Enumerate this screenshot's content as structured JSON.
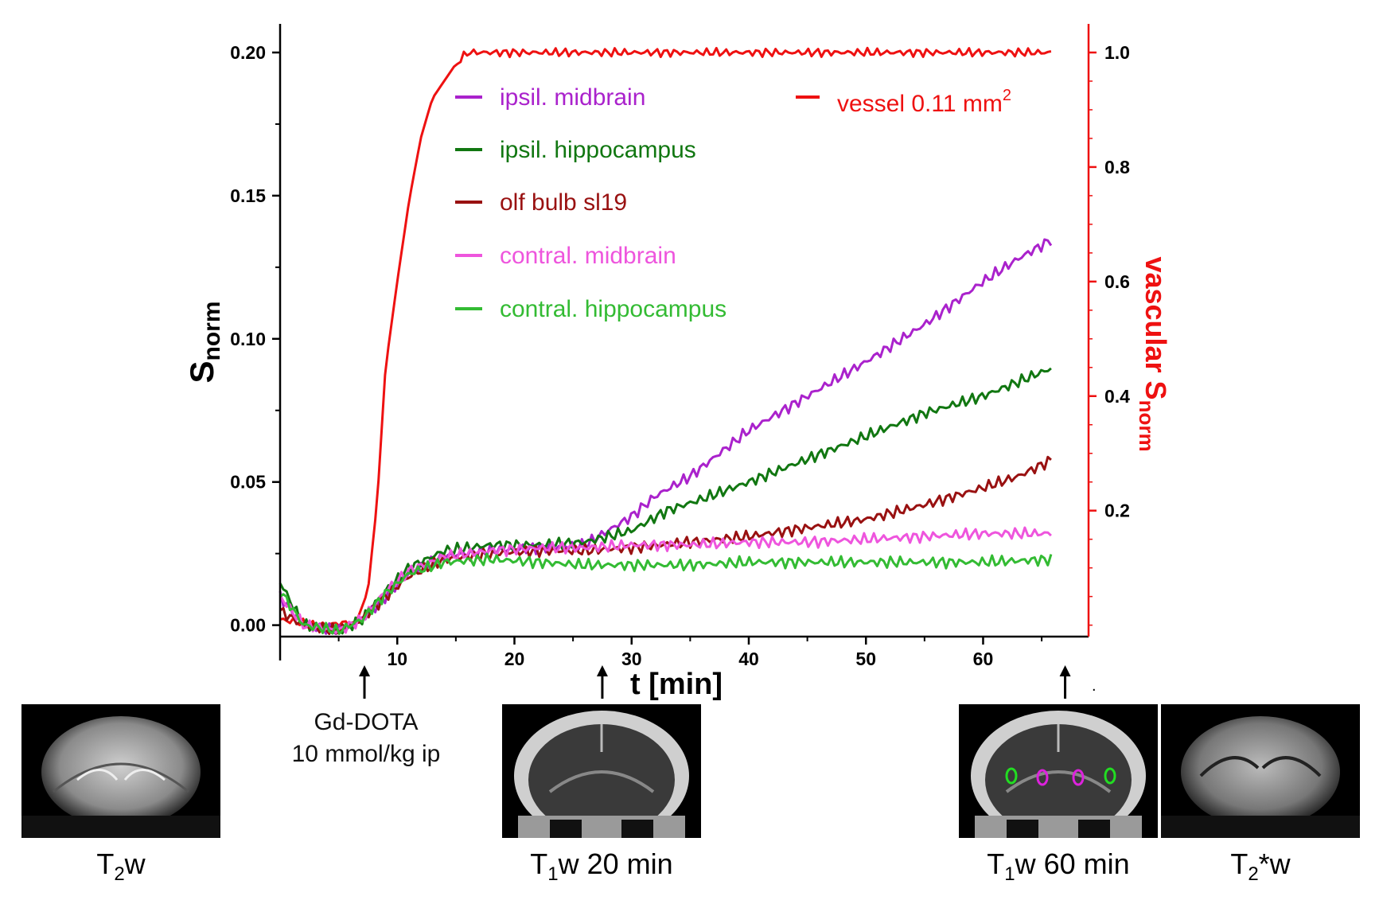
{
  "chart_data": {
    "type": "line",
    "xlabel": "t [min]",
    "ylabel_left": {
      "main": "S",
      "sub": "norm"
    },
    "ylabel_right": {
      "main": "vascular S",
      "sub": "norm"
    },
    "xlim": [
      0,
      69
    ],
    "ylim_left": [
      -0.004,
      0.21
    ],
    "ylim_right": [
      -0.02,
      1.05
    ],
    "x_ticks": [
      10,
      20,
      30,
      40,
      50,
      60
    ],
    "y_ticks_left": [
      "0.00",
      "0.05",
      "0.10",
      "0.15",
      "0.20"
    ],
    "y_ticks_right": [
      "0.2",
      "0.4",
      "0.6",
      "0.8",
      "1.0"
    ],
    "series": [
      {
        "name": "vessel 0.11 mm",
        "sup": "2",
        "axis": "right",
        "color": "#ee1111",
        "points": [
          [
            0,
            0.01
          ],
          [
            3,
            0
          ],
          [
            6.5,
            0.005
          ],
          [
            7.5,
            0.06
          ],
          [
            8.3,
            0.22
          ],
          [
            9,
            0.45
          ],
          [
            10,
            0.6
          ],
          [
            11,
            0.74
          ],
          [
            12,
            0.85
          ],
          [
            13,
            0.92
          ],
          [
            14,
            0.95
          ],
          [
            15,
            0.98
          ],
          [
            16,
            1.0
          ],
          [
            20,
            1.0
          ],
          [
            30,
            1.0
          ],
          [
            40,
            1.0
          ],
          [
            50,
            1.0
          ],
          [
            60,
            1.0
          ],
          [
            66,
            1.0
          ]
        ]
      },
      {
        "name": "ipsil. midbrain",
        "axis": "left",
        "color": "#aa22cc",
        "points": [
          [
            0,
            0.01
          ],
          [
            2,
            0.0
          ],
          [
            5,
            -0.002
          ],
          [
            7,
            0.002
          ],
          [
            9,
            0.01
          ],
          [
            11,
            0.018
          ],
          [
            14,
            0.024
          ],
          [
            18,
            0.026
          ],
          [
            22,
            0.027
          ],
          [
            26,
            0.028
          ],
          [
            30,
            0.038
          ],
          [
            32,
            0.045
          ],
          [
            35,
            0.052
          ],
          [
            40,
            0.068
          ],
          [
            45,
            0.08
          ],
          [
            50,
            0.092
          ],
          [
            55,
            0.105
          ],
          [
            60,
            0.12
          ],
          [
            63,
            0.128
          ],
          [
            66,
            0.135
          ]
        ]
      },
      {
        "name": "ipsil. hippocampus",
        "axis": "left",
        "color": "#117711",
        "points": [
          [
            0,
            0.015
          ],
          [
            2,
            0.0
          ],
          [
            5,
            -0.002
          ],
          [
            7,
            0.002
          ],
          [
            9,
            0.012
          ],
          [
            11,
            0.02
          ],
          [
            14,
            0.026
          ],
          [
            18,
            0.028
          ],
          [
            22,
            0.028
          ],
          [
            26,
            0.029
          ],
          [
            30,
            0.033
          ],
          [
            33,
            0.04
          ],
          [
            36,
            0.044
          ],
          [
            40,
            0.05
          ],
          [
            45,
            0.058
          ],
          [
            50,
            0.066
          ],
          [
            55,
            0.074
          ],
          [
            60,
            0.08
          ],
          [
            63,
            0.085
          ],
          [
            66,
            0.09
          ]
        ]
      },
      {
        "name": "olf bulb sl19",
        "axis": "left",
        "color": "#991111",
        "points": [
          [
            0,
            0.005
          ],
          [
            2,
            0.0
          ],
          [
            5,
            -0.002
          ],
          [
            7,
            0.002
          ],
          [
            9,
            0.01
          ],
          [
            11,
            0.017
          ],
          [
            14,
            0.023
          ],
          [
            18,
            0.025
          ],
          [
            22,
            0.026
          ],
          [
            26,
            0.026
          ],
          [
            30,
            0.027
          ],
          [
            35,
            0.029
          ],
          [
            40,
            0.031
          ],
          [
            45,
            0.034
          ],
          [
            50,
            0.037
          ],
          [
            55,
            0.042
          ],
          [
            60,
            0.048
          ],
          [
            63,
            0.052
          ],
          [
            66,
            0.058
          ]
        ]
      },
      {
        "name": "contral. midbrain",
        "axis": "left",
        "color": "#ee55dd",
        "points": [
          [
            0,
            0.01
          ],
          [
            2,
            0.0
          ],
          [
            5,
            -0.002
          ],
          [
            7,
            0.002
          ],
          [
            9,
            0.012
          ],
          [
            11,
            0.019
          ],
          [
            14,
            0.024
          ],
          [
            18,
            0.026
          ],
          [
            22,
            0.027
          ],
          [
            26,
            0.027
          ],
          [
            30,
            0.028
          ],
          [
            35,
            0.028
          ],
          [
            40,
            0.029
          ],
          [
            45,
            0.029
          ],
          [
            50,
            0.03
          ],
          [
            55,
            0.031
          ],
          [
            60,
            0.032
          ],
          [
            66,
            0.032
          ]
        ]
      },
      {
        "name": "contral. hippocampus",
        "axis": "left",
        "color": "#33bb33",
        "points": [
          [
            0,
            0.012
          ],
          [
            2,
            0.0
          ],
          [
            5,
            -0.002
          ],
          [
            7,
            0.002
          ],
          [
            9,
            0.011
          ],
          [
            11,
            0.018
          ],
          [
            14,
            0.022
          ],
          [
            18,
            0.023
          ],
          [
            22,
            0.022
          ],
          [
            26,
            0.021
          ],
          [
            30,
            0.021
          ],
          [
            35,
            0.021
          ],
          [
            40,
            0.022
          ],
          [
            45,
            0.022
          ],
          [
            50,
            0.022
          ],
          [
            55,
            0.022
          ],
          [
            60,
            0.022
          ],
          [
            66,
            0.023
          ]
        ]
      }
    ],
    "annotations": [
      {
        "x": 7.2,
        "lines": [
          "Gd-DOTA",
          "10 mmol/kg ip"
        ]
      },
      {
        "x": 27.5,
        "lines": []
      },
      {
        "x": 67,
        "lines": []
      }
    ]
  },
  "captions": {
    "t2w": {
      "main": "T",
      "sub": "2",
      "rest": "w"
    },
    "t1w20": {
      "main": "T",
      "sub": "1",
      "rest": "w 20 min"
    },
    "t1w60": {
      "main": "T",
      "sub": "1",
      "rest": "w 60 min"
    },
    "t2sw": {
      "main": "T",
      "sub": "2",
      "rest": "*w"
    }
  },
  "roi_colors": {
    "green": "#22dd22",
    "magenta": "#dd22dd"
  }
}
